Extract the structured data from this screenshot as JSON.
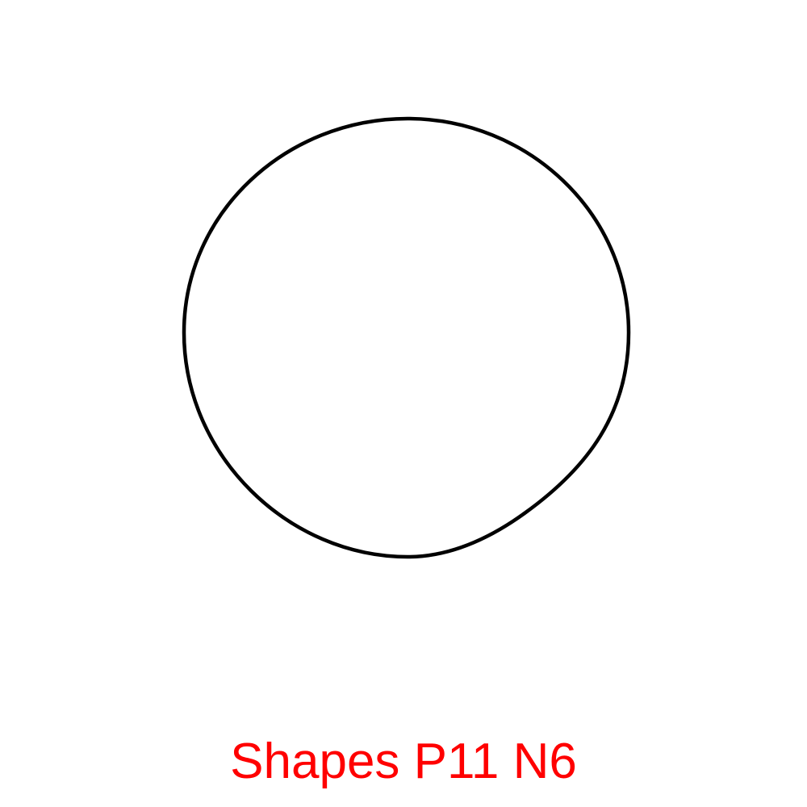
{
  "figure": {
    "shape": "circle",
    "stroke_color": "#000000",
    "fill_color": "#ffffff"
  },
  "caption": {
    "text": "Shapes P11 N6",
    "color": "#ff0000"
  }
}
